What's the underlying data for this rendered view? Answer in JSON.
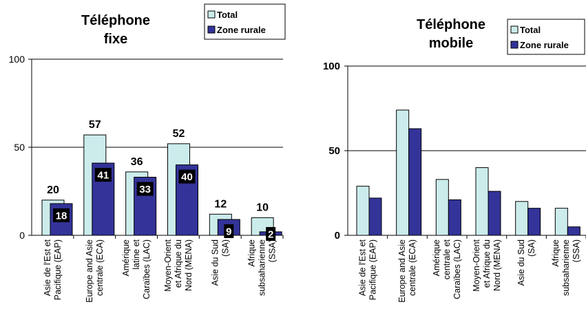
{
  "colors": {
    "total": "#CCECEC",
    "rural": "#333399",
    "outline": "#000000",
    "grid": "#000000"
  },
  "chart_data": [
    {
      "type": "bar",
      "title_lines": [
        "Téléphone",
        "fixe"
      ],
      "ylim": [
        0,
        100
      ],
      "yticks": [
        0,
        50,
        100
      ],
      "categories": [
        [
          "Asie de l'Est et",
          "Pacifique (EAP)"
        ],
        [
          "Europe and Asie",
          "centrale (ECA)"
        ],
        [
          "Amérique",
          "latine et",
          "Caraïbes (LAC)"
        ],
        [
          "Moyen-Orient",
          "et Afrique du",
          "Nord (MENA)"
        ],
        [
          "Asie du Sud",
          "(SA)"
        ],
        [
          "Afrique",
          "subsaharienne",
          "(SSA)"
        ]
      ],
      "series": [
        {
          "name": "Total",
          "values": [
            20,
            57,
            36,
            52,
            12,
            10
          ],
          "labels": [
            "20",
            "57",
            "36",
            "52",
            "12",
            "10"
          ]
        },
        {
          "name": "Zone rurale",
          "values": [
            18,
            41,
            33,
            40,
            9,
            2
          ],
          "labels": [
            "18",
            "41",
            "33",
            "40",
            "9",
            "2"
          ]
        }
      ],
      "legend": [
        "Total",
        "Zone rurale"
      ],
      "legend_position": "top-right",
      "grid": true
    },
    {
      "type": "bar",
      "title_lines": [
        "Téléphone",
        "mobile"
      ],
      "ylim": [
        0,
        100
      ],
      "yticks": [
        0,
        50,
        100
      ],
      "categories": [
        [
          "Asie de l'Est et",
          "Pacifique (EAP)"
        ],
        [
          "Europe and Asie",
          "centrale (ECA)"
        ],
        [
          "Amérique",
          "centrale et",
          "Caraïbes (LAC)"
        ],
        [
          "Moyen-Orient",
          "et Afrique du",
          "Nord (MENA)"
        ],
        [
          "Asie du Sud",
          "(SA)"
        ],
        [
          "Afrique",
          "subsaharienne",
          "(SSA)"
        ]
      ],
      "series": [
        {
          "name": "Total",
          "values": [
            29,
            74,
            33,
            40,
            20,
            16
          ]
        },
        {
          "name": "Zone rurale",
          "values": [
            22,
            63,
            21,
            26,
            16,
            5
          ]
        }
      ],
      "legend": [
        "Total",
        "Zone rurale"
      ],
      "legend_position": "top-right",
      "grid": true
    }
  ]
}
